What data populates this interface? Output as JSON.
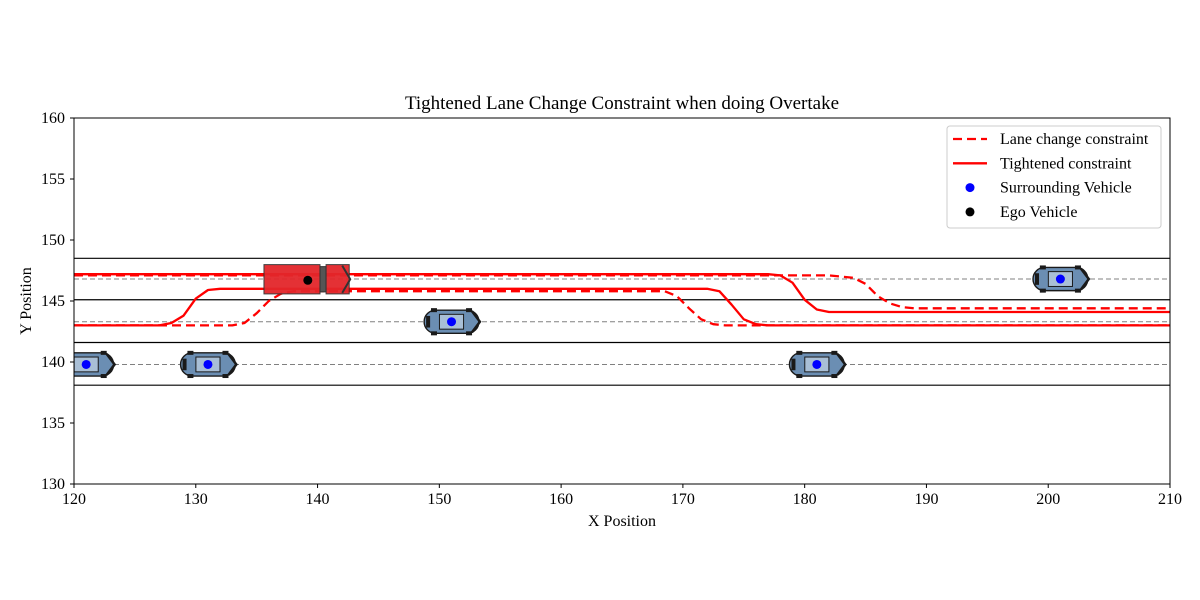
{
  "chart_data": {
    "type": "line",
    "title": "Tightened Lane Change Constraint when doing Overtake",
    "xlabel": "X Position",
    "ylabel": "Y Position",
    "xlim": [
      120,
      210
    ],
    "ylim": [
      130,
      160
    ],
    "xticks": [
      120,
      130,
      140,
      150,
      160,
      170,
      180,
      190,
      200,
      210
    ],
    "yticks": [
      130,
      135,
      140,
      145,
      150,
      155,
      160
    ],
    "grid": false,
    "legend_position": "top-right",
    "lane_boundaries": [
      138.1,
      141.6,
      145.1,
      148.5
    ],
    "lane_centers": [
      139.8,
      143.3,
      146.8
    ],
    "legend": [
      {
        "label": "Lane change constraint",
        "kind": "dashed-line",
        "color": "#ff0000"
      },
      {
        "label": "Tightened constraint",
        "kind": "solid-line",
        "color": "#ff0000"
      },
      {
        "label": "Surrounding Vehicle",
        "kind": "dot",
        "color": "#0000ff"
      },
      {
        "label": "Ego Vehicle",
        "kind": "dot",
        "color": "#000000"
      }
    ],
    "series": [
      {
        "style": "dashed",
        "color": "#ff0000",
        "points": [
          [
            120,
            147.1
          ],
          [
            182,
            147.1
          ],
          [
            183,
            147.0
          ],
          [
            184,
            146.9
          ],
          [
            185,
            146.4
          ],
          [
            186,
            145.4
          ],
          [
            187,
            144.8
          ],
          [
            188,
            144.5
          ],
          [
            189,
            144.4
          ],
          [
            210,
            144.4
          ]
        ]
      },
      {
        "style": "dashed",
        "color": "#ff0000",
        "points": [
          [
            120,
            143.0
          ],
          [
            133,
            143.0
          ],
          [
            134,
            143.2
          ],
          [
            135,
            144.0
          ],
          [
            136,
            145.0
          ],
          [
            137,
            145.6
          ],
          [
            138,
            145.8
          ],
          [
            168.5,
            145.8
          ],
          [
            169.5,
            145.4
          ],
          [
            170.5,
            144.4
          ],
          [
            171.5,
            143.5
          ],
          [
            172.5,
            143.1
          ],
          [
            173.5,
            143.0
          ],
          [
            210,
            143.0
          ]
        ]
      },
      {
        "style": "solid",
        "color": "#ff0000",
        "points": [
          [
            120,
            147.2
          ],
          [
            177,
            147.2
          ],
          [
            178,
            147.1
          ],
          [
            179,
            146.5
          ],
          [
            180,
            145.1
          ],
          [
            181,
            144.3
          ],
          [
            182,
            144.1
          ],
          [
            210,
            144.1
          ]
        ]
      },
      {
        "style": "solid",
        "color": "#ff0000",
        "points": [
          [
            120,
            143.0
          ],
          [
            127,
            143.0
          ],
          [
            128,
            143.2
          ],
          [
            129,
            143.8
          ],
          [
            130,
            145.2
          ],
          [
            131,
            145.9
          ],
          [
            132,
            146.0
          ],
          [
            172,
            146.0
          ],
          [
            173,
            145.8
          ],
          [
            174,
            144.7
          ],
          [
            175,
            143.5
          ],
          [
            176,
            143.1
          ],
          [
            177,
            143.0
          ],
          [
            210,
            143.0
          ]
        ]
      }
    ],
    "surrounding_vehicles": [
      [
        121,
        139.8
      ],
      [
        131,
        139.8
      ],
      [
        151,
        143.3
      ],
      [
        181,
        139.8
      ],
      [
        201,
        146.8
      ]
    ],
    "ego_vehicle": [
      139.2,
      146.7
    ],
    "colors": {
      "vehicle_body": "#6b8eb3",
      "ego_body": "#e3262b",
      "constraint": "#ff0000",
      "lane_center": "#808080"
    }
  }
}
